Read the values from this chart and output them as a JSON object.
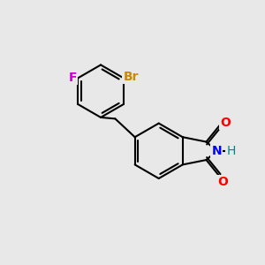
{
  "bg_color": "#e8e8e8",
  "bond_color": "#000000",
  "bond_width": 1.5,
  "atom_labels": {
    "F": {
      "color": "#cc00cc",
      "fontsize": 10
    },
    "Br": {
      "color": "#cc8800",
      "fontsize": 10
    },
    "N": {
      "color": "#0000ff",
      "fontsize": 10
    },
    "H": {
      "color": "#008888",
      "fontsize": 10
    },
    "O": {
      "color": "#ff0000",
      "fontsize": 10
    }
  }
}
